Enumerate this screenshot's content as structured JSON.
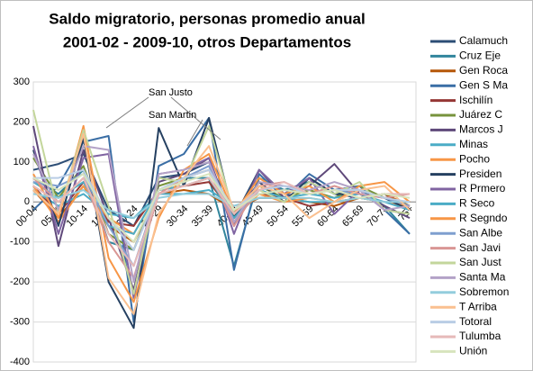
{
  "chart_data": {
    "type": "line",
    "title": "Saldo migratorio, personas promedio anual",
    "subtitle": "2001-02 - 2009-10, otros Departamentos",
    "annotations": [
      "San Justo",
      "San Martin"
    ],
    "categories": [
      "00-04",
      "05-09",
      "10-14",
      "15-19",
      "20-24",
      "25-29",
      "30-34",
      "35-39",
      "40-44",
      "45-49",
      "50-54",
      "55-59",
      "60-64",
      "65-69",
      "70-74",
      "75+"
    ],
    "ylim": [
      -400,
      300
    ],
    "yticks": [
      -400,
      -300,
      -200,
      -100,
      0,
      100,
      200,
      300
    ],
    "grid": true,
    "series": [
      {
        "name": "Calamuch",
        "color": "#2C4D75",
        "values": [
          80,
          95,
          120,
          -20,
          -60,
          60,
          70,
          100,
          -40,
          80,
          20,
          60,
          20,
          10,
          20,
          -20
        ]
      },
      {
        "name": "Cruz Eje",
        "color": "#31859C",
        "values": [
          60,
          20,
          80,
          -100,
          -120,
          30,
          60,
          60,
          -160,
          60,
          30,
          50,
          20,
          30,
          -10,
          -80
        ]
      },
      {
        "name": "Gen Roca",
        "color": "#B65708",
        "values": [
          30,
          -40,
          40,
          -60,
          -100,
          20,
          30,
          20,
          -20,
          10,
          10,
          0,
          -10,
          10,
          20,
          -10
        ]
      },
      {
        "name": "Gen S Ma",
        "color": "#3A6EA5",
        "values": [
          -20,
          40,
          150,
          165,
          -300,
          90,
          120,
          210,
          -170,
          70,
          10,
          70,
          30,
          40,
          -20,
          -80
        ]
      },
      {
        "name": "Ischilín",
        "color": "#953735",
        "values": [
          40,
          -30,
          50,
          -50,
          -60,
          30,
          40,
          50,
          -30,
          20,
          10,
          -10,
          0,
          10,
          0,
          -10
        ]
      },
      {
        "name": "Juárez C",
        "color": "#77933C",
        "values": [
          110,
          10,
          90,
          -80,
          -120,
          40,
          60,
          80,
          -40,
          40,
          10,
          30,
          10,
          40,
          10,
          -10
        ]
      },
      {
        "name": "Marcos J",
        "color": "#5F497A",
        "values": [
          190,
          -110,
          130,
          -40,
          -220,
          50,
          70,
          110,
          -60,
          80,
          10,
          40,
          95,
          20,
          -10,
          -40
        ]
      },
      {
        "name": "Minas",
        "color": "#4BACC6",
        "values": [
          30,
          -10,
          20,
          -30,
          -40,
          20,
          20,
          30,
          -10,
          10,
          10,
          0,
          0,
          10,
          0,
          0
        ]
      },
      {
        "name": "Pocho",
        "color": "#F79646",
        "values": [
          40,
          -50,
          40,
          -40,
          -80,
          30,
          40,
          60,
          -40,
          20,
          0,
          10,
          0,
          10,
          0,
          -10
        ]
      },
      {
        "name": "Presiden",
        "color": "#254061",
        "values": [
          130,
          -60,
          160,
          -200,
          -315,
          185,
          40,
          210,
          -40,
          50,
          0,
          60,
          20,
          20,
          10,
          -20
        ]
      },
      {
        "name": "R Prmero",
        "color": "#8064A2",
        "values": [
          140,
          -80,
          110,
          120,
          -240,
          70,
          80,
          110,
          -80,
          80,
          20,
          60,
          -30,
          30,
          -20,
          -30
        ]
      },
      {
        "name": "R Seco",
        "color": "#4BACC6",
        "values": [
          50,
          10,
          50,
          -60,
          -80,
          30,
          40,
          60,
          -40,
          30,
          10,
          20,
          10,
          20,
          0,
          -20
        ]
      },
      {
        "name": "R Segndo",
        "color": "#F79646",
        "values": [
          70,
          -40,
          190,
          -140,
          -250,
          -40,
          80,
          120,
          -30,
          60,
          20,
          40,
          0,
          40,
          50,
          0
        ]
      },
      {
        "name": "San Albe",
        "color": "#7F9FCF",
        "values": [
          50,
          40,
          70,
          -60,
          -160,
          30,
          60,
          90,
          -50,
          30,
          40,
          20,
          30,
          20,
          10,
          -10
        ]
      },
      {
        "name": "San Javi",
        "color": "#D99694",
        "values": [
          60,
          0,
          60,
          -100,
          -190,
          20,
          60,
          80,
          -60,
          40,
          50,
          20,
          40,
          20,
          10,
          20
        ]
      },
      {
        "name": "San Just",
        "color": "#C3D69B",
        "values": [
          230,
          -30,
          180,
          -10,
          -230,
          60,
          50,
          190,
          -30,
          30,
          0,
          50,
          20,
          50,
          -20,
          -30
        ]
      },
      {
        "name": "Santa Ma",
        "color": "#B3A2C7",
        "values": [
          120,
          -20,
          140,
          130,
          -200,
          70,
          80,
          100,
          -50,
          50,
          40,
          30,
          50,
          30,
          -20,
          -10
        ]
      },
      {
        "name": "Sobremon",
        "color": "#93CDDD",
        "values": [
          20,
          10,
          30,
          -20,
          -40,
          10,
          20,
          20,
          -10,
          10,
          10,
          10,
          0,
          10,
          0,
          0
        ]
      },
      {
        "name": "T Arriba",
        "color": "#FAC090",
        "values": [
          30,
          -30,
          170,
          -190,
          -280,
          -30,
          60,
          140,
          -20,
          40,
          20,
          -40,
          0,
          30,
          40,
          -20
        ]
      },
      {
        "name": "Totoral",
        "color": "#B9CDE5",
        "values": [
          60,
          60,
          80,
          -40,
          -120,
          30,
          60,
          80,
          -20,
          30,
          40,
          20,
          30,
          30,
          10,
          0
        ]
      },
      {
        "name": "Tulumba",
        "color": "#E6B9B8",
        "values": [
          40,
          0,
          60,
          -80,
          -160,
          20,
          40,
          60,
          -30,
          30,
          50,
          20,
          30,
          10,
          20,
          20
        ]
      },
      {
        "name": "Unión",
        "color": "#D7E4BD",
        "values": [
          60,
          30,
          70,
          -40,
          -100,
          30,
          50,
          70,
          -20,
          20,
          30,
          20,
          30,
          10,
          20,
          10
        ]
      }
    ]
  }
}
